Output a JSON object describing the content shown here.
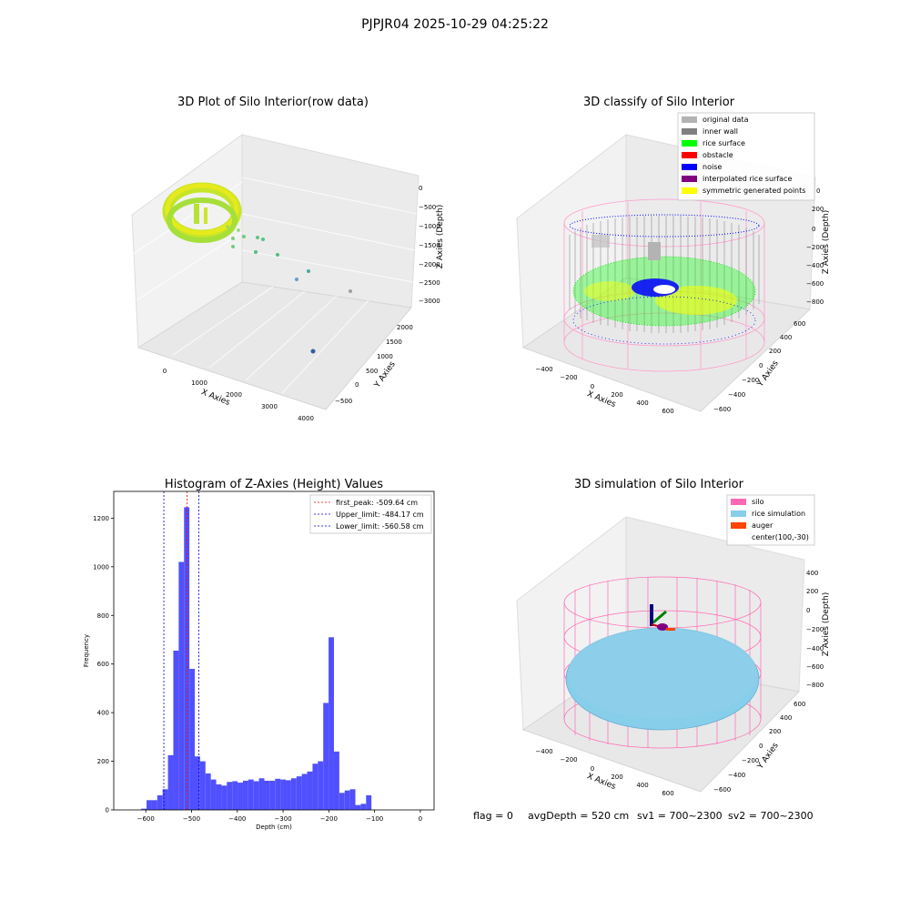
{
  "figure": {
    "suptitle": "PJPJR04 2025-10-29 04:25:22",
    "footer": {
      "flag": "flag = 0",
      "avg_depth": "avgDepth = 520 cm",
      "sv1": "sv1 = 700~2300",
      "sv2": "sv2 = 700~2300"
    }
  },
  "chart_data": [
    {
      "type": "scatter",
      "projection": "3d",
      "title": "3D Plot of Silo Interior(row data)",
      "xlabel": "X Axies",
      "ylabel": "Y Axies",
      "zlabel": "Z Axies (Depth)",
      "x_ticks": [
        "0",
        "1000",
        "2000",
        "3000",
        "4000"
      ],
      "y_ticks": [
        "−500",
        "0",
        "500",
        "1000",
        "1500",
        "2000"
      ],
      "z_ticks": [
        "0",
        "−500",
        "−1000",
        "−1500",
        "−2000",
        "−2500",
        "−3000"
      ],
      "colormap": "viridis",
      "outliers": [
        {
          "x": 500,
          "y": 300,
          "z": -1200
        },
        {
          "x": 700,
          "y": 200,
          "z": -1300
        },
        {
          "x": 900,
          "y": 100,
          "z": -1500
        },
        {
          "x": 1300,
          "y": 0,
          "z": -1700
        },
        {
          "x": 1900,
          "y": -200,
          "z": -2100
        },
        {
          "x": 2300,
          "y": -300,
          "z": -2300
        },
        {
          "x": 3000,
          "y": -400,
          "z": -2700
        },
        {
          "x": 3900,
          "y": -500,
          "z": -3100
        }
      ]
    },
    {
      "type": "scatter",
      "projection": "3d",
      "title": "3D classify of Silo Interior",
      "xlabel": "X Axies",
      "ylabel": "Y Axies",
      "zlabel": "Z Axies (Depth)",
      "x_ticks": [
        "−400",
        "−200",
        "0",
        "200",
        "400",
        "600"
      ],
      "y_ticks": [
        "−600",
        "−400",
        "−200",
        "0",
        "200",
        "400",
        "600"
      ],
      "z_ticks": [
        "200",
        "0",
        "−200",
        "−400",
        "−600",
        "−800"
      ],
      "z_tick_partial": "0",
      "legend": [
        {
          "label": "original data",
          "color": "#b3b3b3"
        },
        {
          "label": "inner wall",
          "color": "#808080"
        },
        {
          "label": "rice surface",
          "color": "#00ff00"
        },
        {
          "label": "obstacle",
          "color": "#ff0000"
        },
        {
          "label": "noise",
          "color": "#0000ff"
        },
        {
          "label": "interpolated rice surface",
          "color": "#800080"
        },
        {
          "label": "symmetric generated points",
          "color": "#ffff00"
        }
      ],
      "cylinder_color": "#ff9ccc"
    },
    {
      "type": "bar",
      "title": "Histogram of Z-Axies (Height) Values",
      "xlabel": "Depth (cm)",
      "ylabel": "Frequency",
      "xlim": [
        -670,
        30
      ],
      "ylim": [
        0,
        1310
      ],
      "x_ticks": [
        -600,
        -500,
        -400,
        -300,
        -200,
        -100,
        0
      ],
      "x_tick_labels": [
        "−600",
        "−500",
        "−400",
        "−300",
        "−200",
        "−100",
        "0"
      ],
      "y_ticks": [
        0,
        200,
        400,
        600,
        800,
        1000,
        1200
      ],
      "y_tick_labels": [
        "0",
        "200",
        "400",
        "600",
        "800",
        "1000",
        "1200"
      ],
      "bin_start": -610,
      "bin_width": 11.7,
      "values": [
        5,
        40,
        40,
        60,
        85,
        225,
        655,
        1020,
        1245,
        580,
        220,
        200,
        150,
        125,
        105,
        100,
        115,
        118,
        112,
        120,
        125,
        118,
        130,
        120,
        120,
        128,
        125,
        122,
        130,
        138,
        148,
        158,
        190,
        200,
        440,
        710,
        240,
        70,
        80,
        85,
        20,
        25,
        60
      ],
      "bar_color": "#5050ff",
      "lines": [
        {
          "label": "first_peak: -509.64 cm",
          "x": -509.64,
          "color": "#ff0000"
        },
        {
          "label": "Upper_limit: -484.17 cm",
          "x": -484.17,
          "color": "#0000cc"
        },
        {
          "label": "Lower_limit: -560.58 cm",
          "x": -560.58,
          "color": "#0000cc"
        }
      ]
    },
    {
      "type": "surface",
      "projection": "3d",
      "title": "3D simulation of Silo Interior",
      "xlabel": "X Axies",
      "ylabel": "Y Axies",
      "zlabel": "Z Axies (Depth)",
      "x_ticks": [
        "−400",
        "−200",
        "0",
        "200",
        "400",
        "600"
      ],
      "y_ticks": [
        "−600",
        "−400",
        "−200",
        "0",
        "200",
        "400",
        "600"
      ],
      "z_ticks": [
        "400",
        "200",
        "0",
        "−200",
        "−400",
        "−600",
        "−800"
      ],
      "legend": [
        {
          "label": "silo",
          "color": "#ff69b4"
        },
        {
          "label": "rice simulation",
          "color": "#87ceeb"
        },
        {
          "label": "auger",
          "color": "#ff4500"
        },
        {
          "label": "center(100,-30)",
          "color": ""
        }
      ]
    }
  ]
}
